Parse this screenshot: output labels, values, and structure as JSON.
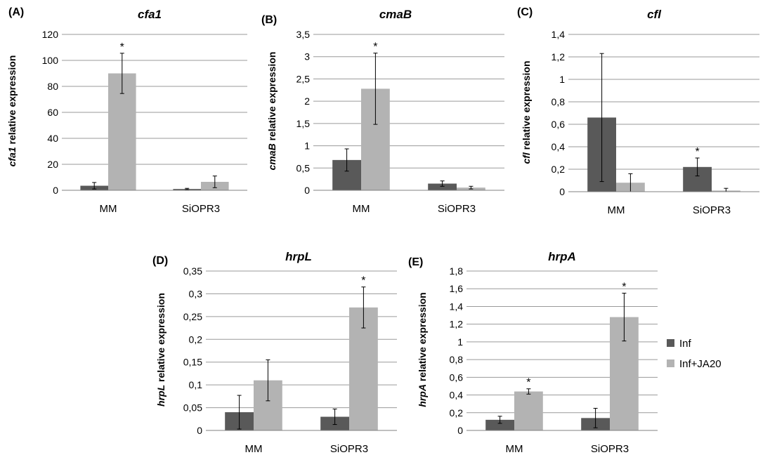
{
  "legend": {
    "items": [
      {
        "label": "Inf",
        "color": "#595959"
      },
      {
        "label": "Inf+JA20",
        "color": "#b3b3b3"
      }
    ]
  },
  "chart_data": [
    {
      "type": "bar",
      "panel": "(A)",
      "title": "cfa1",
      "ylabel_gene": "cfa1",
      "ylabel_rest": " relative expression",
      "categories": [
        "MM",
        "SiOPR3"
      ],
      "ylim": [
        0,
        120
      ],
      "yticks": [
        "0",
        "20",
        "40",
        "60",
        "80",
        "100",
        "120"
      ],
      "yticks_values": [
        0,
        20,
        40,
        60,
        80,
        100,
        120
      ],
      "series": [
        {
          "name": "Inf",
          "values": [
            3.5,
            1
          ],
          "errors": [
            2.5,
            0.5
          ],
          "stars": [
            false,
            false
          ]
        },
        {
          "name": "Inf+JA20",
          "values": [
            90,
            6.5
          ],
          "errors": [
            15.5,
            4.5
          ],
          "stars": [
            true,
            false
          ]
        }
      ],
      "star": "*"
    },
    {
      "type": "bar",
      "panel": "(B)",
      "title": "cmaB",
      "ylabel_gene": "cmaB",
      "ylabel_rest": " relative expression",
      "categories": [
        "MM",
        "SiOPR3"
      ],
      "ylim": [
        0,
        3.5
      ],
      "yticks": [
        "0",
        "0,5",
        "1",
        "1,5",
        "2",
        "2,5",
        "3",
        "3,5"
      ],
      "yticks_values": [
        0,
        0.5,
        1,
        1.5,
        2,
        2.5,
        3,
        3.5
      ],
      "series": [
        {
          "name": "Inf",
          "values": [
            0.68,
            0.15
          ],
          "errors": [
            0.25,
            0.06
          ],
          "stars": [
            false,
            false
          ]
        },
        {
          "name": "Inf+JA20",
          "values": [
            2.28,
            0.06
          ],
          "errors": [
            0.8,
            0.03
          ],
          "stars": [
            true,
            false
          ]
        }
      ],
      "star": "*"
    },
    {
      "type": "bar",
      "panel": "(C)",
      "title": "cfl",
      "ylabel_gene": "cfl",
      "ylabel_rest": " relative expression",
      "categories": [
        "MM",
        "SiOPR3"
      ],
      "ylim": [
        0,
        1.4
      ],
      "yticks": [
        "0",
        "0,2",
        "0,4",
        "0,6",
        "0,8",
        "1",
        "1,2",
        "1,4"
      ],
      "yticks_values": [
        0,
        0.2,
        0.4,
        0.6,
        0.8,
        1,
        1.2,
        1.4
      ],
      "series": [
        {
          "name": "Inf",
          "values": [
            0.66,
            0.22
          ],
          "errors": [
            0.57,
            0.08
          ],
          "stars": [
            false,
            true
          ]
        },
        {
          "name": "Inf+JA20",
          "values": [
            0.08,
            0.01
          ],
          "errors": [
            0.08,
            0.02
          ],
          "stars": [
            false,
            false
          ]
        }
      ],
      "star": "*"
    },
    {
      "type": "bar",
      "panel": "(D)",
      "title": "hrpL",
      "ylabel_gene": "hrpL",
      "ylabel_rest": " relative expression",
      "categories": [
        "MM",
        "SiOPR3"
      ],
      "ylim": [
        0,
        0.35
      ],
      "yticks": [
        "0",
        "0,05",
        "0,1",
        "0,15",
        "0,2",
        "0,25",
        "0,3",
        "0,35"
      ],
      "yticks_values": [
        0,
        0.05,
        0.1,
        0.15,
        0.2,
        0.25,
        0.3,
        0.35
      ],
      "series": [
        {
          "name": "Inf",
          "values": [
            0.04,
            0.03
          ],
          "errors": [
            0.037,
            0.017
          ],
          "stars": [
            false,
            false
          ]
        },
        {
          "name": "Inf+JA20",
          "values": [
            0.11,
            0.27
          ],
          "errors": [
            0.045,
            0.045
          ],
          "stars": [
            false,
            true
          ]
        }
      ],
      "star": "*"
    },
    {
      "type": "bar",
      "panel": "(E)",
      "title": "hrpA",
      "ylabel_gene": "hrpA",
      "ylabel_rest": " relative expression",
      "categories": [
        "MM",
        "SiOPR3"
      ],
      "ylim": [
        0,
        1.8
      ],
      "yticks": [
        "0",
        "0,2",
        "0,4",
        "0,6",
        "0,8",
        "1",
        "1,2",
        "1,4",
        "1,6",
        "1,8"
      ],
      "yticks_values": [
        0,
        0.2,
        0.4,
        0.6,
        0.8,
        1,
        1.2,
        1.4,
        1.6,
        1.8
      ],
      "series": [
        {
          "name": "Inf",
          "values": [
            0.12,
            0.14
          ],
          "errors": [
            0.04,
            0.11
          ],
          "stars": [
            false,
            false
          ]
        },
        {
          "name": "Inf+JA20",
          "values": [
            0.44,
            1.28
          ],
          "errors": [
            0.03,
            0.27
          ],
          "stars": [
            true,
            true
          ]
        }
      ],
      "star": "*"
    }
  ]
}
